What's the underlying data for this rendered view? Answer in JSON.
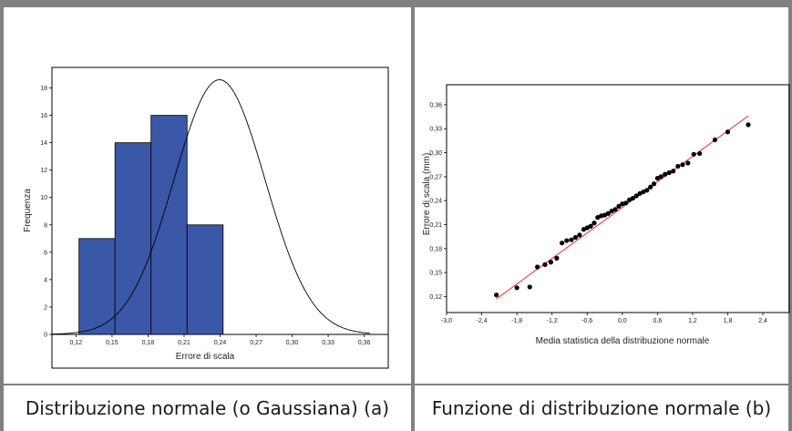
{
  "captions": {
    "left": "Distribuzione normale (o Gaussiana) (a)",
    "right": "Funzione di distribuzione normale (b)"
  },
  "colors": {
    "bar_fill": "#3b57a7",
    "curve": "#000000",
    "line": "#e23030",
    "point": "#000000",
    "border": "#808080"
  },
  "chart_data": [
    {
      "type": "bar",
      "subtype": "histogram",
      "xlabel": "Errore di scala",
      "ylabel": "Frequenza",
      "xlim": [
        0.1,
        0.38
      ],
      "ylim": [
        0,
        19.5
      ],
      "x_ticks": [
        0.12,
        0.15,
        0.18,
        0.21,
        0.24,
        0.27,
        0.3,
        0.33,
        0.36
      ],
      "x_tick_labels": [
        "0,12",
        "0,15",
        "0,18",
        "0,21",
        "0,24",
        "0,27",
        "0,30",
        "0,33",
        "0,36"
      ],
      "y_ticks": [
        0,
        2,
        4,
        6,
        8,
        10,
        12,
        14,
        16,
        18
      ],
      "y_tick_labels": [
        "0",
        "2",
        "4",
        "6",
        "8",
        "10",
        "12",
        "14",
        "16",
        "18"
      ],
      "bins": [
        {
          "x0": 0.1225,
          "x1": 0.1525,
          "value": 7
        },
        {
          "x0": 0.1525,
          "x1": 0.1825,
          "value": 14
        },
        {
          "x0": 0.1825,
          "x1": 0.2125,
          "value": 16
        },
        {
          "x0": 0.2125,
          "x1": 0.2425,
          "value": 8
        }
      ],
      "normal_curve": {
        "mean": 0.2395,
        "sd": 0.038,
        "peak": 18.6
      }
    },
    {
      "type": "scatter",
      "subtype": "normal-probability-plot",
      "xlabel": "Media statistica della distribuzione normale",
      "ylabel": "Errore di scala (mm)",
      "xlim": [
        -3.0,
        2.85
      ],
      "ylim": [
        0.1,
        0.385
      ],
      "x_ticks": [
        -3.0,
        -2.4,
        -1.8,
        -1.2,
        -0.6,
        0.0,
        0.6,
        1.2,
        1.8,
        2.4
      ],
      "x_tick_labels": [
        "-3,0",
        "-2,4",
        "-1,8",
        "-1,2",
        "-0,6",
        "0,0",
        "0,6",
        "1,2",
        "1,8",
        "2,4"
      ],
      "y_ticks": [
        0.12,
        0.15,
        0.18,
        0.21,
        0.24,
        0.27,
        0.3,
        0.33,
        0.36
      ],
      "y_tick_labels": [
        "0,12",
        "0,15",
        "0,18",
        "0,21",
        "0,24",
        "0,27",
        "0,30",
        "0,33",
        "0,36"
      ],
      "reference_line": {
        "x": [
          -2.15,
          2.15
        ],
        "y": [
          0.117,
          0.346
        ]
      },
      "points": [
        {
          "x": -2.15,
          "y": 0.122
        },
        {
          "x": -1.8,
          "y": 0.131
        },
        {
          "x": -1.58,
          "y": 0.132
        },
        {
          "x": -1.45,
          "y": 0.157
        },
        {
          "x": -1.32,
          "y": 0.16
        },
        {
          "x": -1.22,
          "y": 0.163
        },
        {
          "x": -1.12,
          "y": 0.168
        },
        {
          "x": -1.03,
          "y": 0.187
        },
        {
          "x": -0.95,
          "y": 0.19
        },
        {
          "x": -0.87,
          "y": 0.191
        },
        {
          "x": -0.8,
          "y": 0.194
        },
        {
          "x": -0.73,
          "y": 0.197
        },
        {
          "x": -0.66,
          "y": 0.204
        },
        {
          "x": -0.6,
          "y": 0.206
        },
        {
          "x": -0.54,
          "y": 0.208
        },
        {
          "x": -0.48,
          "y": 0.212
        },
        {
          "x": -0.42,
          "y": 0.219
        },
        {
          "x": -0.36,
          "y": 0.221
        },
        {
          "x": -0.3,
          "y": 0.222
        },
        {
          "x": -0.24,
          "y": 0.224
        },
        {
          "x": -0.18,
          "y": 0.227
        },
        {
          "x": -0.12,
          "y": 0.229
        },
        {
          "x": -0.06,
          "y": 0.233
        },
        {
          "x": 0.0,
          "y": 0.236
        },
        {
          "x": 0.06,
          "y": 0.237
        },
        {
          "x": 0.12,
          "y": 0.241
        },
        {
          "x": 0.18,
          "y": 0.243
        },
        {
          "x": 0.24,
          "y": 0.246
        },
        {
          "x": 0.3,
          "y": 0.249
        },
        {
          "x": 0.36,
          "y": 0.251
        },
        {
          "x": 0.42,
          "y": 0.253
        },
        {
          "x": 0.48,
          "y": 0.257
        },
        {
          "x": 0.54,
          "y": 0.261
        },
        {
          "x": 0.6,
          "y": 0.268
        },
        {
          "x": 0.66,
          "y": 0.27
        },
        {
          "x": 0.73,
          "y": 0.273
        },
        {
          "x": 0.8,
          "y": 0.275
        },
        {
          "x": 0.87,
          "y": 0.277
        },
        {
          "x": 0.95,
          "y": 0.283
        },
        {
          "x": 1.03,
          "y": 0.285
        },
        {
          "x": 1.12,
          "y": 0.287
        },
        {
          "x": 1.22,
          "y": 0.298
        },
        {
          "x": 1.32,
          "y": 0.299
        },
        {
          "x": 1.58,
          "y": 0.316
        },
        {
          "x": 1.8,
          "y": 0.326
        },
        {
          "x": 2.15,
          "y": 0.335
        }
      ]
    }
  ]
}
